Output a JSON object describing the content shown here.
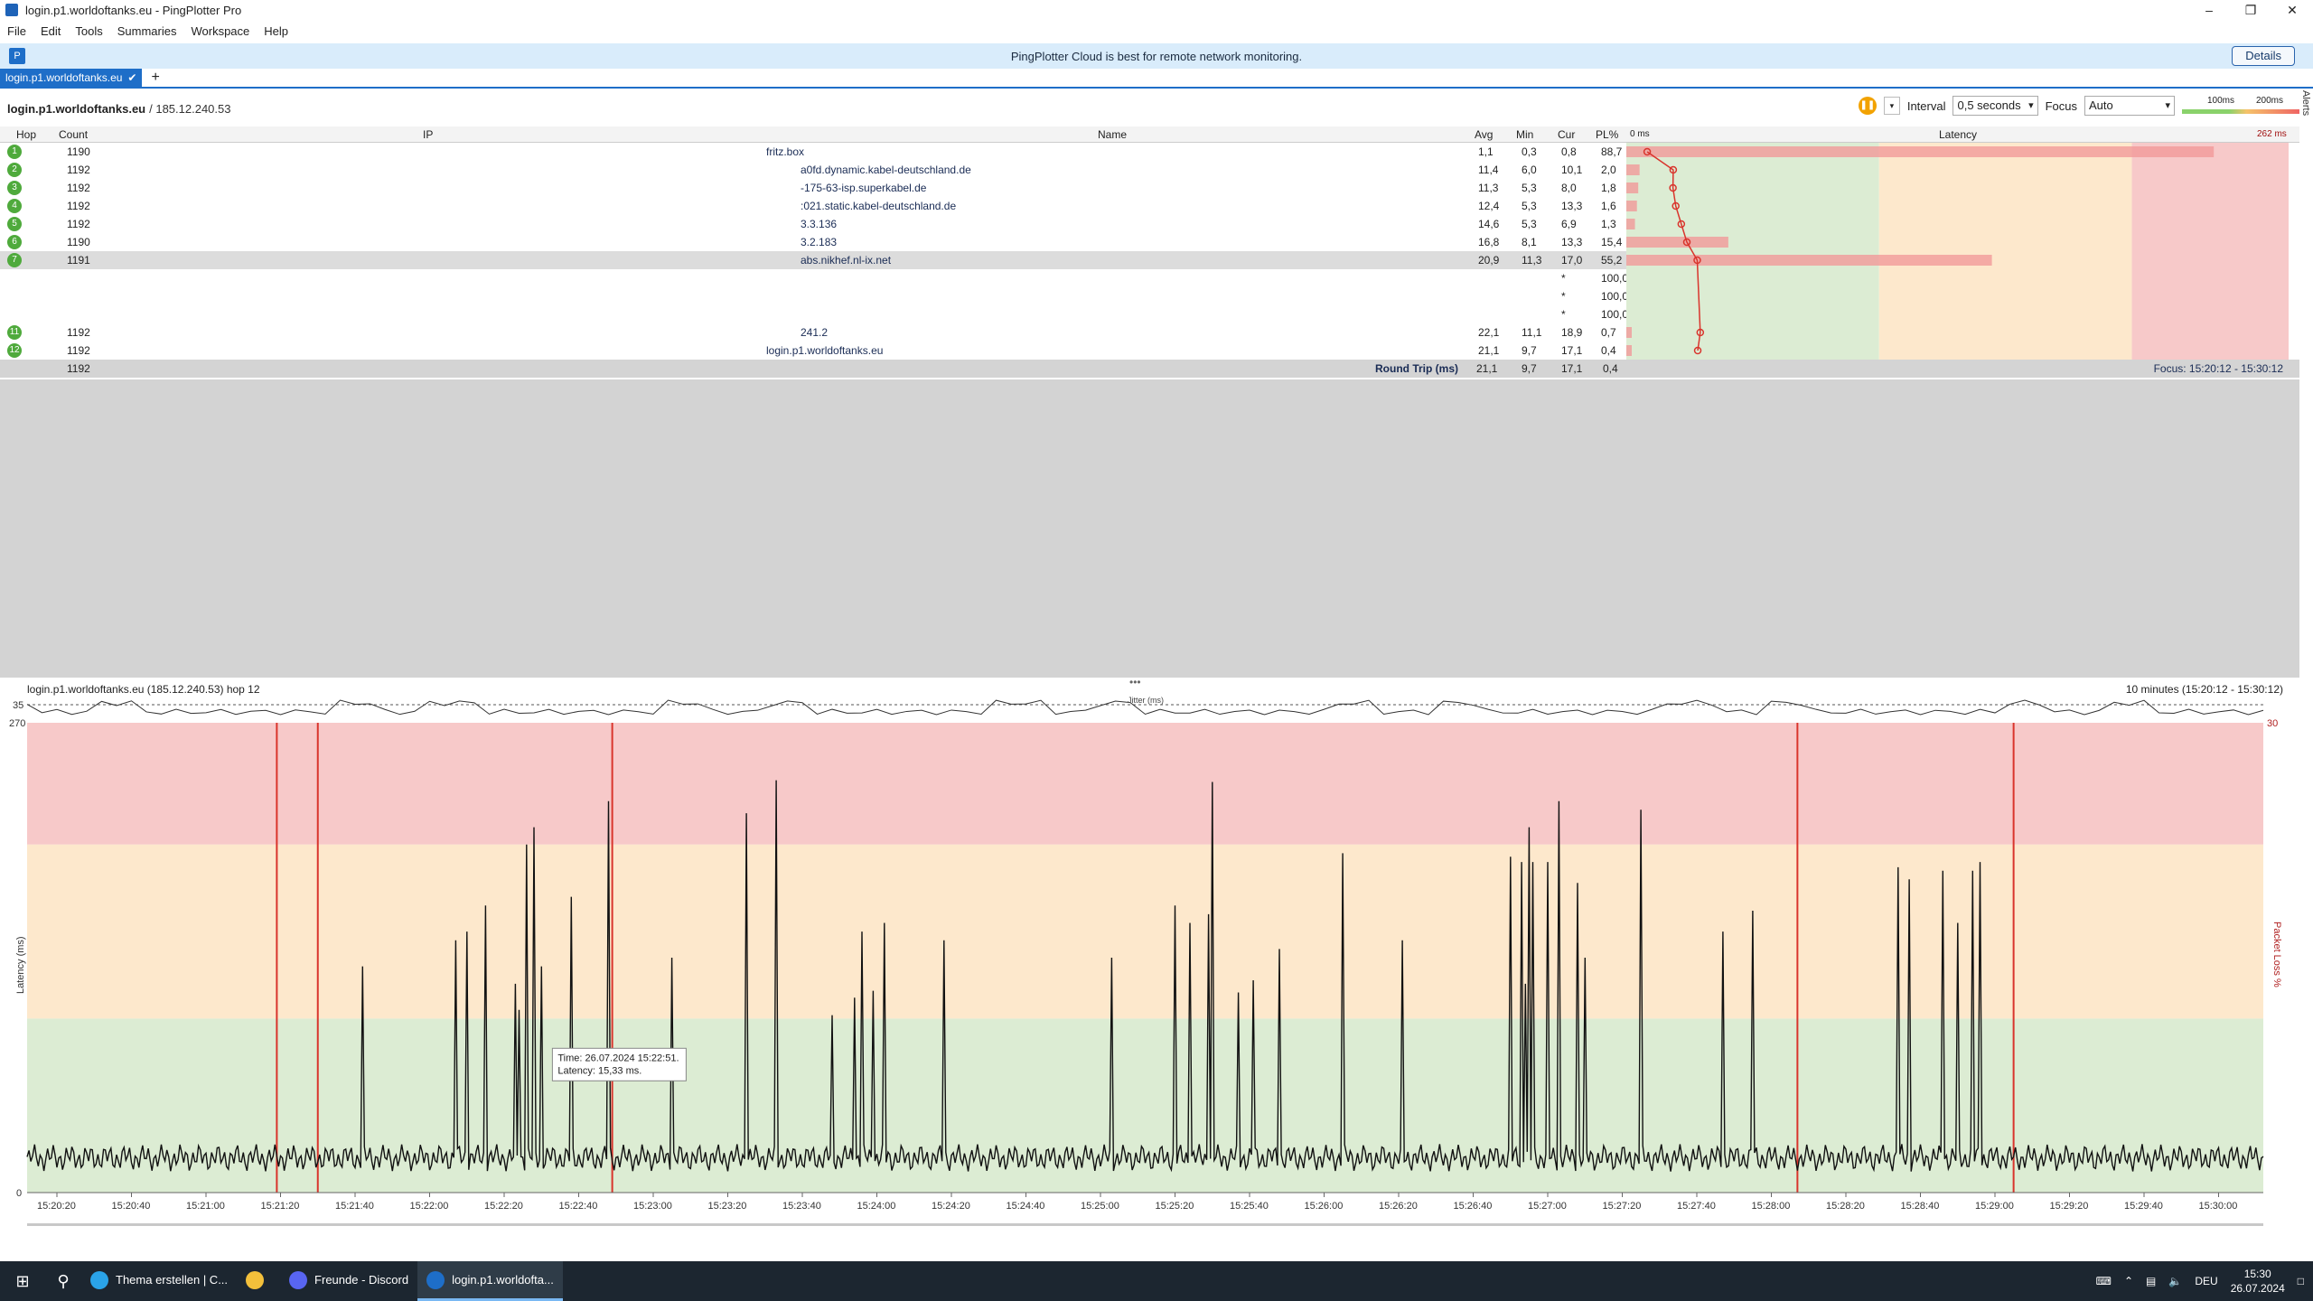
{
  "window": {
    "title": "login.p1.worldoftanks.eu - PingPlotter Pro"
  },
  "menu": [
    "File",
    "Edit",
    "Tools",
    "Summaries",
    "Workspace",
    "Help"
  ],
  "banner": {
    "message": "PingPlotter Cloud is best for remote network monitoring.",
    "details_label": "Details"
  },
  "tabs": [
    {
      "label": "login.p1.worldoftanks.eu"
    }
  ],
  "alerts_label": "Alerts",
  "host": {
    "name": "login.p1.worldoftanks.eu",
    "ip": "/ 185.12.240.53"
  },
  "controls": {
    "interval_label": "Interval",
    "interval_value": "0,5 seconds",
    "focus_label": "Focus",
    "focus_value": "Auto",
    "scale_100": "100ms",
    "scale_200": "200ms"
  },
  "table": {
    "headers": {
      "hop": "Hop",
      "count": "Count",
      "ip": "IP",
      "name": "Name",
      "avg": "Avg",
      "min": "Min",
      "cur": "Cur",
      "pl": "PL%",
      "latency": "Latency",
      "lat_start": "0 ms",
      "lat_end": "262 ms"
    },
    "rows": [
      {
        "hop": "1",
        "count": "1190",
        "name": "fritz.box",
        "avg": "1,1",
        "min": "0,3",
        "cur": "0,8",
        "pl": "88,7",
        "plv": 88.7,
        "avgv": 1.1
      },
      {
        "hop": "2",
        "count": "1192",
        "name": "a0fd.dynamic.kabel-deutschland.de",
        "avg": "11,4",
        "min": "6,0",
        "cur": "10,1",
        "pl": "2,0",
        "plv": 2.0,
        "avgv": 11.4
      },
      {
        "hop": "3",
        "count": "1192",
        "name": "-175-63-isp.superkabel.de",
        "avg": "11,3",
        "min": "5,3",
        "cur": "8,0",
        "pl": "1,8",
        "plv": 1.8,
        "avgv": 11.3
      },
      {
        "hop": "4",
        "count": "1192",
        "name": ":021.static.kabel-deutschland.de",
        "avg": "12,4",
        "min": "5,3",
        "cur": "13,3",
        "pl": "1,6",
        "plv": 1.6,
        "avgv": 12.4
      },
      {
        "hop": "5",
        "count": "1192",
        "name": "3.3.136",
        "avg": "14,6",
        "min": "5,3",
        "cur": "6,9",
        "pl": "1,3",
        "plv": 1.3,
        "avgv": 14.6
      },
      {
        "hop": "6",
        "count": "1190",
        "name": "3.2.183",
        "avg": "16,8",
        "min": "8,1",
        "cur": "13,3",
        "pl": "15,4",
        "plv": 15.4,
        "avgv": 16.8
      },
      {
        "hop": "7",
        "count": "1191",
        "name": "abs.nikhef.nl-ix.net",
        "avg": "20,9",
        "min": "11,3",
        "cur": "17,0",
        "pl": "55,2",
        "plv": 55.2,
        "avgv": 20.9,
        "selected": true
      },
      {
        "hop": "",
        "count": "",
        "name": "",
        "avg": "",
        "min": "",
        "cur": "*",
        "pl": "100,0"
      },
      {
        "hop": "",
        "count": "",
        "name": "",
        "avg": "",
        "min": "",
        "cur": "*",
        "pl": "100,0"
      },
      {
        "hop": "",
        "count": "",
        "name": "",
        "avg": "",
        "min": "",
        "cur": "*",
        "pl": "100,0"
      },
      {
        "hop": "11",
        "count": "1192",
        "name": "241.2",
        "avg": "22,1",
        "min": "11,1",
        "cur": "18,9",
        "pl": "0,7",
        "plv": 0.7,
        "avgv": 22.1
      },
      {
        "hop": "12",
        "count": "1192",
        "name": "login.p1.worldoftanks.eu",
        "avg": "21,1",
        "min": "9,7",
        "cur": "17,1",
        "pl": "0,4",
        "plv": 0.4,
        "avgv": 21.1
      }
    ],
    "summary": {
      "count": "1192",
      "label": "Round Trip (ms)",
      "avg": "21,1",
      "min": "9,7",
      "cur": "17,1",
      "pl": "0,4",
      "focus": "Focus: 15:20:12 - 15:30:12"
    }
  },
  "graph": {
    "header": "login.p1.worldoftanks.eu (185.12.240.53) hop 12",
    "range": "10 minutes (15:20:12 - 15:30:12)",
    "jitter_label": "Jitter (ms)",
    "jitter_max": "35",
    "y_top": "270",
    "y_zero": "0",
    "y_axis_label": "Latency (ms)",
    "right_label": "Packet Loss %",
    "right_top": "30",
    "tooltip_time": "Time: 26.07.2024 15:22:51.",
    "tooltip_latency": "Latency: 15,33 ms.",
    "x_ticks": [
      "15:20:20",
      "15:20:40",
      "15:21:00",
      "15:21:20",
      "15:21:40",
      "15:22:00",
      "15:22:20",
      "15:22:40",
      "15:23:00",
      "15:23:20",
      "15:23:40",
      "15:24:00",
      "15:24:20",
      "15:24:40",
      "15:25:00",
      "15:25:20",
      "15:25:40",
      "15:26:00",
      "15:26:20",
      "15:26:40",
      "15:27:00",
      "15:27:20",
      "15:27:40",
      "15:28:00",
      "15:28:20",
      "15:28:40",
      "15:29:00",
      "15:29:20",
      "15:29:40",
      "15:30:00"
    ],
    "loss_markers_s": [
      79,
      90,
      169,
      487,
      545
    ],
    "spikes": [
      [
        102,
        130
      ],
      [
        127,
        145
      ],
      [
        130,
        150
      ],
      [
        135,
        165
      ],
      [
        143,
        120
      ],
      [
        144,
        105
      ],
      [
        146,
        200
      ],
      [
        148,
        150
      ],
      [
        148,
        210
      ],
      [
        150,
        130
      ],
      [
        158,
        170
      ],
      [
        168,
        225
      ],
      [
        185,
        135
      ],
      [
        205,
        218
      ],
      [
        213,
        237
      ],
      [
        228,
        102
      ],
      [
        234,
        112
      ],
      [
        236,
        150
      ],
      [
        239,
        116
      ],
      [
        242,
        155
      ],
      [
        258,
        145
      ],
      [
        303,
        135
      ],
      [
        320,
        165
      ],
      [
        324,
        155
      ],
      [
        329,
        160
      ],
      [
        330,
        236
      ],
      [
        337,
        115
      ],
      [
        341,
        122
      ],
      [
        348,
        140
      ],
      [
        365,
        195
      ],
      [
        381,
        145
      ],
      [
        410,
        193
      ],
      [
        413,
        190
      ],
      [
        414,
        120
      ],
      [
        415,
        210
      ],
      [
        416,
        190
      ],
      [
        420,
        190
      ],
      [
        423,
        225
      ],
      [
        428,
        178
      ],
      [
        430,
        135
      ],
      [
        445,
        220
      ],
      [
        467,
        150
      ],
      [
        475,
        162
      ],
      [
        514,
        187
      ],
      [
        517,
        180
      ],
      [
        526,
        185
      ],
      [
        530,
        155
      ],
      [
        534,
        185
      ],
      [
        536,
        190
      ]
    ],
    "colors": {
      "red_zone": "#f7c9c9",
      "yellow_zone": "#fde8cc",
      "green_zone": "#dcecd3",
      "loss": "#d9342c",
      "line": "#111111"
    }
  },
  "taskbar": {
    "apps": [
      {
        "label": "Thema erstellen | C...",
        "color": "#2aa3e8"
      },
      {
        "label": "",
        "color": "#f3c03b"
      },
      {
        "label": "Freunde - Discord",
        "color": "#5865f2"
      },
      {
        "label": "login.p1.worldofta...",
        "color": "#1e6ec8",
        "active": true
      }
    ],
    "lang": "DEU",
    "time": "15:30",
    "date": "26.07.2024"
  }
}
